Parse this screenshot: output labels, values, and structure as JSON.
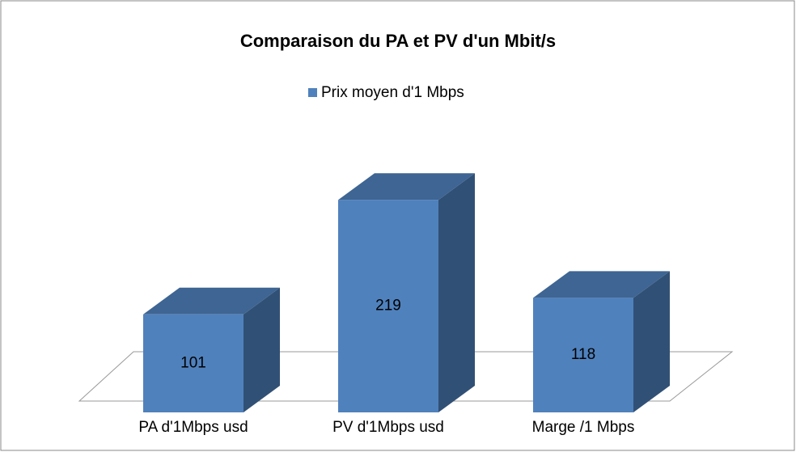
{
  "chart_data": {
    "type": "bar",
    "title": "Comparaison du PA et PV d'un Mbit/s",
    "categories": [
      "PA d'1Mbps usd",
      "PV d'1Mbps usd",
      "Marge /1 Mbps"
    ],
    "series": [
      {
        "name": "Prix  moyen d'1 Mbps",
        "color": "#4f81bd",
        "values": [
          101,
          219,
          118
        ]
      }
    ]
  }
}
